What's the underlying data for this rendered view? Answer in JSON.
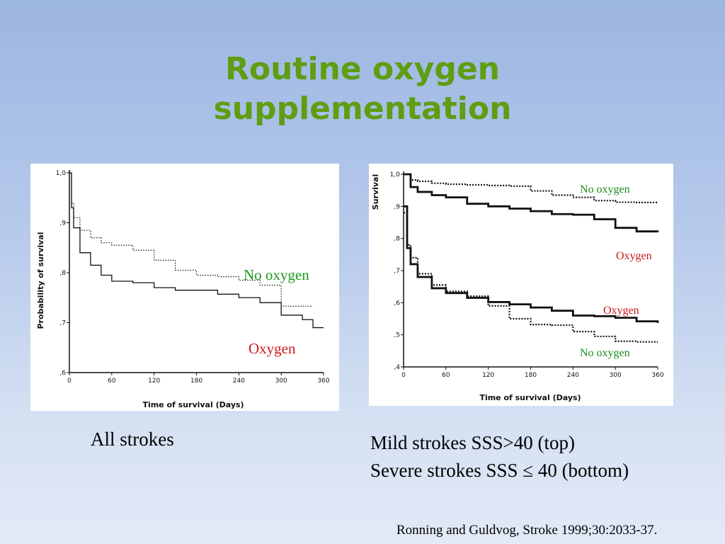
{
  "slide": {
    "title_line1": "Routine oxygen",
    "title_line2": "supplementation",
    "caption_left": "All strokes",
    "caption_right_line1": "Mild strokes SSS>40 (top)",
    "caption_right_line2": "Severe strokes SSS ≤ 40 (bottom)",
    "citation": "Ronning  and Guldvog, Stroke 1999;30:2033-37.",
    "colors": {
      "title": "#5e9e12",
      "no_oxygen_label_left": "#1a9a1a",
      "oxygen_label_left": "#d01818",
      "annotation_right": "#c81a1a",
      "no_oxygen_label_right": "#1a8a1a"
    }
  },
  "chart_data": [
    {
      "type": "line",
      "xlabel": "Time of survival (Days)",
      "ylabel": "Probability of survival",
      "xlim": [
        0,
        360
      ],
      "ylim": [
        0.6,
        1.0
      ],
      "xticks": [
        "0",
        "60",
        "120",
        "180",
        "240",
        "300",
        "360"
      ],
      "yticks": [
        "1,0",
        ",9",
        ",8",
        ",7",
        ",6"
      ],
      "annotations": [
        "No oxygen",
        "Oxygen"
      ],
      "series": [
        {
          "name": "No oxygen",
          "style": "dotted",
          "points": [
            [
              0,
              1.0
            ],
            [
              3,
              0.94
            ],
            [
              6,
              0.91
            ],
            [
              15,
              0.885
            ],
            [
              30,
              0.87
            ],
            [
              45,
              0.86
            ],
            [
              60,
              0.855
            ],
            [
              90,
              0.845
            ],
            [
              120,
              0.825
            ],
            [
              150,
              0.805
            ],
            [
              180,
              0.795
            ],
            [
              210,
              0.792
            ],
            [
              240,
              0.785
            ],
            [
              270,
              0.775
            ],
            [
              300,
              0.733
            ],
            [
              330,
              0.733
            ],
            [
              345,
              0.733
            ]
          ]
        },
        {
          "name": "Oxygen",
          "style": "solid",
          "points": [
            [
              0,
              1.0
            ],
            [
              3,
              0.93
            ],
            [
              6,
              0.89
            ],
            [
              15,
              0.84
            ],
            [
              30,
              0.815
            ],
            [
              45,
              0.795
            ],
            [
              60,
              0.783
            ],
            [
              90,
              0.78
            ],
            [
              120,
              0.77
            ],
            [
              150,
              0.765
            ],
            [
              180,
              0.765
            ],
            [
              210,
              0.757
            ],
            [
              240,
              0.75
            ],
            [
              270,
              0.74
            ],
            [
              300,
              0.715
            ],
            [
              330,
              0.706
            ],
            [
              345,
              0.69
            ],
            [
              360,
              0.69
            ]
          ]
        }
      ]
    },
    {
      "type": "line",
      "xlabel": "Time of survival (Days)",
      "ylabel": "Survival",
      "xlim": [
        0,
        360
      ],
      "ylim": [
        0.4,
        1.0
      ],
      "xticks": [
        "0",
        "60",
        "120",
        "180",
        "240",
        "300",
        "360"
      ],
      "yticks": [
        "1,0",
        ",9",
        ",8",
        ",7",
        ",6",
        ",5",
        ",4"
      ],
      "annotations": [
        "No oxygen",
        "Oxygen",
        "Oxygen",
        "No oxygen"
      ],
      "series": [
        {
          "name": "No oxygen",
          "group": "Mild strokes",
          "style": "dotted",
          "points": [
            [
              0,
              1.0
            ],
            [
              10,
              0.982
            ],
            [
              20,
              0.978
            ],
            [
              40,
              0.972
            ],
            [
              60,
              0.969
            ],
            [
              90,
              0.967
            ],
            [
              120,
              0.965
            ],
            [
              150,
              0.963
            ],
            [
              180,
              0.948
            ],
            [
              210,
              0.935
            ],
            [
              240,
              0.928
            ],
            [
              270,
              0.918
            ],
            [
              300,
              0.913
            ],
            [
              330,
              0.912
            ],
            [
              360,
              0.91
            ]
          ]
        },
        {
          "name": "Oxygen",
          "group": "Mild strokes",
          "style": "solid",
          "points": [
            [
              0,
              1.0
            ],
            [
              10,
              0.96
            ],
            [
              20,
              0.945
            ],
            [
              40,
              0.935
            ],
            [
              60,
              0.928
            ],
            [
              90,
              0.908
            ],
            [
              120,
              0.9
            ],
            [
              150,
              0.893
            ],
            [
              180,
              0.885
            ],
            [
              210,
              0.876
            ],
            [
              240,
              0.874
            ],
            [
              270,
              0.86
            ],
            [
              300,
              0.833
            ],
            [
              330,
              0.822
            ],
            [
              360,
              0.82
            ]
          ]
        },
        {
          "name": "Oxygen",
          "group": "Severe strokes",
          "style": "solid",
          "points": [
            [
              0,
              0.9
            ],
            [
              5,
              0.77
            ],
            [
              10,
              0.72
            ],
            [
              20,
              0.68
            ],
            [
              40,
              0.645
            ],
            [
              60,
              0.63
            ],
            [
              90,
              0.615
            ],
            [
              120,
              0.602
            ],
            [
              150,
              0.595
            ],
            [
              180,
              0.585
            ],
            [
              210,
              0.575
            ],
            [
              240,
              0.56
            ],
            [
              270,
              0.558
            ],
            [
              300,
              0.553
            ],
            [
              330,
              0.542
            ],
            [
              360,
              0.537
            ]
          ]
        },
        {
          "name": "No oxygen",
          "group": "Severe strokes",
          "style": "dotted",
          "points": [
            [
              0,
              0.88
            ],
            [
              5,
              0.78
            ],
            [
              10,
              0.74
            ],
            [
              20,
              0.69
            ],
            [
              40,
              0.655
            ],
            [
              60,
              0.635
            ],
            [
              90,
              0.62
            ],
            [
              120,
              0.59
            ],
            [
              150,
              0.55
            ],
            [
              180,
              0.532
            ],
            [
              210,
              0.53
            ],
            [
              240,
              0.51
            ],
            [
              270,
              0.495
            ],
            [
              300,
              0.48
            ],
            [
              330,
              0.478
            ],
            [
              360,
              0.478
            ]
          ]
        }
      ]
    }
  ]
}
